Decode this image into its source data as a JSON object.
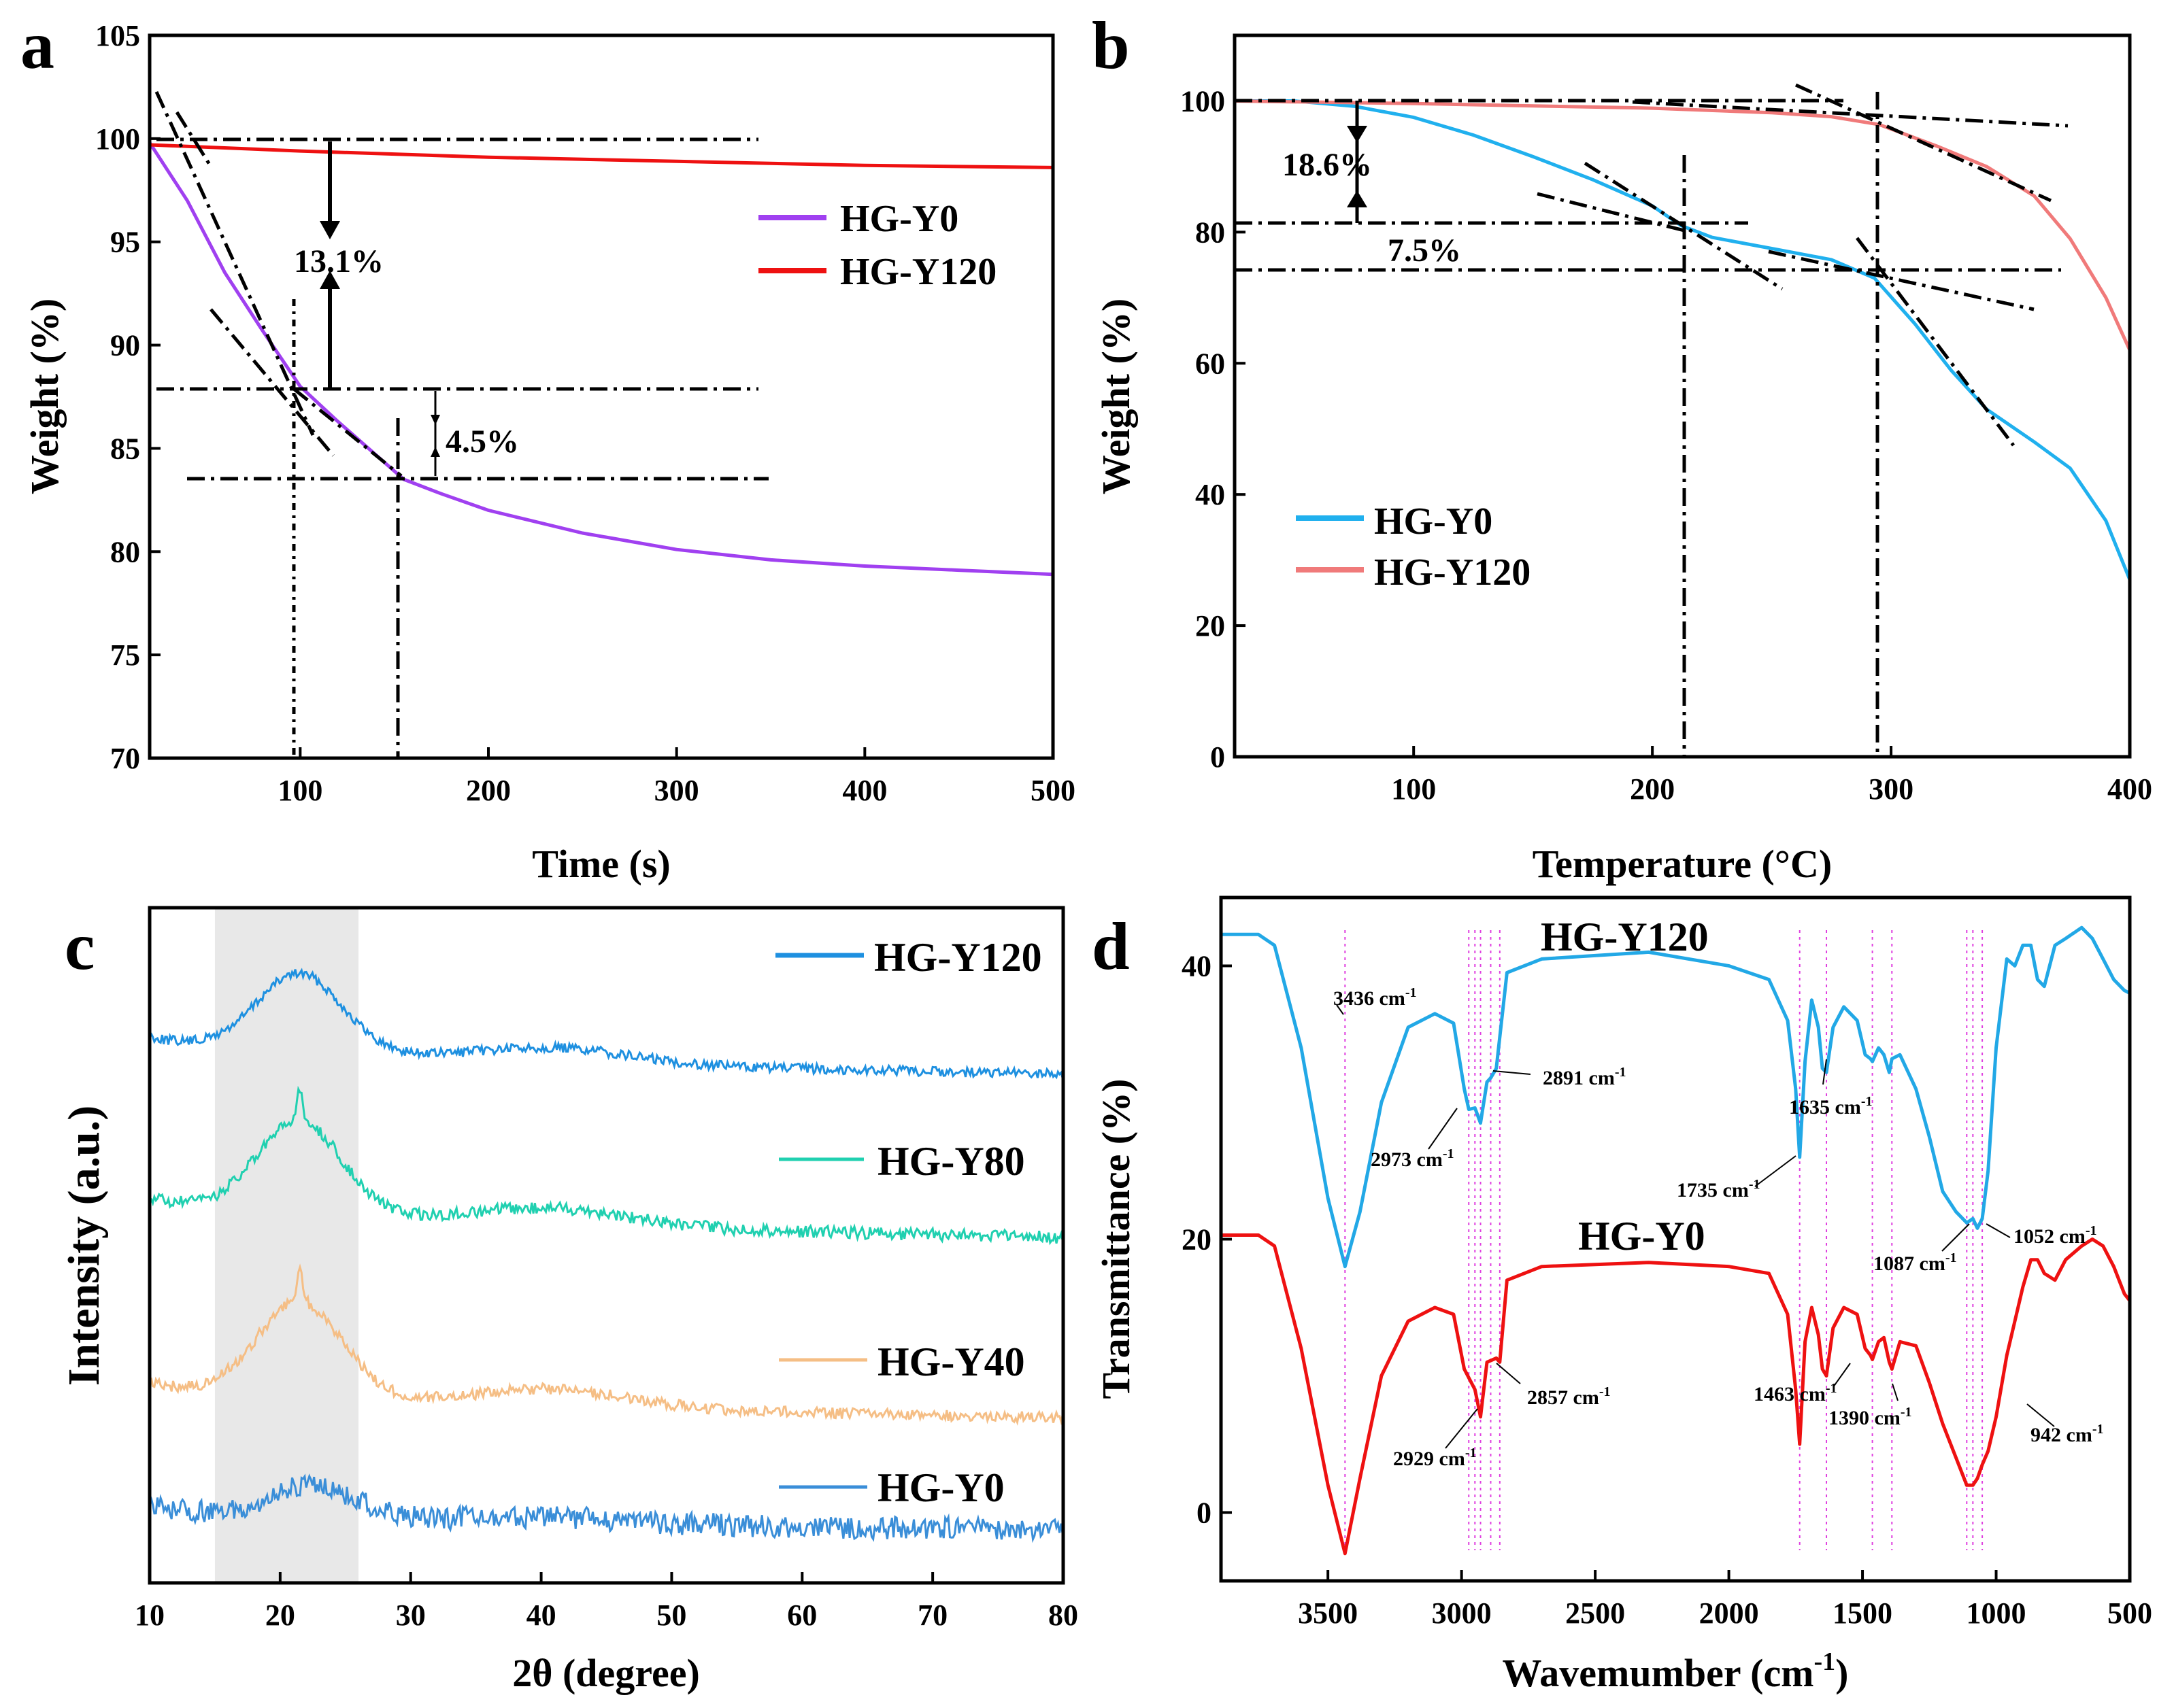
{
  "chart_data": [
    {
      "panel": "a",
      "type": "line",
      "xlabel": "Time (s)",
      "ylabel": "Weight (%)",
      "xlim": [
        20,
        500
      ],
      "ylim": [
        70,
        105
      ],
      "xticks": [
        100,
        200,
        300,
        400,
        500
      ],
      "yticks": [
        70,
        75,
        80,
        85,
        90,
        95,
        100,
        105
      ],
      "legend_position": "center-right",
      "series": [
        {
          "name": "HG-Y0",
          "color": "#a040f0",
          "x": [
            20,
            40,
            60,
            80,
            100,
            120,
            140,
            155,
            175,
            200,
            250,
            300,
            350,
            400,
            450,
            500
          ],
          "y": [
            99.8,
            97.0,
            93.5,
            90.7,
            88.0,
            86.3,
            84.7,
            83.5,
            82.8,
            82.0,
            80.9,
            80.1,
            79.6,
            79.3,
            79.1,
            78.9
          ]
        },
        {
          "name": "HG-Y120",
          "color": "#ee1111",
          "x": [
            20,
            100,
            200,
            300,
            400,
            500
          ],
          "y": [
            99.7,
            99.4,
            99.1,
            98.9,
            98.7,
            98.6
          ]
        }
      ],
      "annotations": [
        "13.1%",
        "4.5%"
      ]
    },
    {
      "panel": "b",
      "type": "line",
      "xlabel": "Temperature (°C)",
      "ylabel": "Weight (%)",
      "xlim": [
        25,
        400
      ],
      "ylim": [
        0,
        110
      ],
      "xticks": [
        100,
        200,
        300,
        400
      ],
      "yticks": [
        0,
        20,
        40,
        60,
        80,
        100
      ],
      "legend_position": "bottom-left",
      "series": [
        {
          "name": "HG-Y0",
          "color": "#20b0ee",
          "x": [
            25,
            50,
            75,
            100,
            125,
            150,
            175,
            200,
            212,
            225,
            250,
            275,
            293,
            310,
            325,
            340,
            360,
            375,
            390,
            400
          ],
          "y": [
            100,
            100,
            99.2,
            97.5,
            94.8,
            91.5,
            88.0,
            84.0,
            81.0,
            79.2,
            77.5,
            75.8,
            73.0,
            66.0,
            59.0,
            53.0,
            48.0,
            44.0,
            36.0,
            27.0
          ]
        },
        {
          "name": "HG-Y120",
          "color": "#f07a7a",
          "x": [
            25,
            100,
            200,
            250,
            275,
            295,
            320,
            340,
            360,
            375,
            390,
            400
          ],
          "y": [
            100,
            99.6,
            98.9,
            98.2,
            97.6,
            96.4,
            93.0,
            90.0,
            85.5,
            79.0,
            70.0,
            62.0
          ]
        }
      ],
      "annotations": [
        "18.6%",
        "7.5%"
      ]
    },
    {
      "panel": "c",
      "type": "line",
      "xlabel": "2θ (degree)",
      "ylabel": "Intensity (a.u.)",
      "xlim": [
        10,
        80
      ],
      "xticks": [
        10,
        20,
        30,
        40,
        50,
        60,
        70,
        80
      ],
      "highlight_range": [
        15,
        26
      ],
      "series": [
        {
          "name": "HG-Y120",
          "color": "#1e90e0",
          "peak_x": 21.5
        },
        {
          "name": "HG-Y80",
          "color": "#20d0b0",
          "peak_x": 21.5
        },
        {
          "name": "HG-Y40",
          "color": "#f5be85",
          "peak_x": 21.5
        },
        {
          "name": "HG-Y0",
          "color": "#3a8ed8",
          "peak_x": 22.5
        }
      ]
    },
    {
      "panel": "d",
      "type": "line",
      "xlabel": "Wavemumber (cm",
      "xlabel_sup": "-1",
      "xlabel_tail": ")",
      "ylabel": "Transmittance (%)",
      "xlim": [
        3900,
        500
      ],
      "ylim": [
        -5,
        45
      ],
      "xticks": [
        3500,
        3000,
        2500,
        2000,
        1500,
        1000,
        500
      ],
      "yticks": [
        0,
        20,
        40
      ],
      "series": [
        {
          "name": "HG-Y120",
          "color": "#22a8e6",
          "x": [
            3900,
            3760,
            3700,
            3600,
            3500,
            3436,
            3380,
            3300,
            3200,
            3100,
            3030,
            2990,
            2973,
            2950,
            2929,
            2905,
            2891,
            2870,
            2830,
            2700,
            2300,
            2000,
            1850,
            1780,
            1750,
            1735,
            1715,
            1690,
            1665,
            1650,
            1635,
            1610,
            1570,
            1520,
            1490,
            1470,
            1463,
            1440,
            1420,
            1400,
            1390,
            1360,
            1300,
            1250,
            1200,
            1150,
            1110,
            1087,
            1070,
            1052,
            1030,
            1000,
            960,
            930,
            900,
            870,
            845,
            820,
            780,
            740,
            680,
            640,
            600,
            560,
            520,
            500
          ],
          "y": [
            42.3,
            42.3,
            41.5,
            34.0,
            23.0,
            18.0,
            22.0,
            30.0,
            35.5,
            36.5,
            35.8,
            31.0,
            29.5,
            29.6,
            28.5,
            31.5,
            31.8,
            32.5,
            39.5,
            40.5,
            41.0,
            40.0,
            39.0,
            36.0,
            31.0,
            26.0,
            33.0,
            37.5,
            35.5,
            32.5,
            32.2,
            35.5,
            37.0,
            36.0,
            33.5,
            33.2,
            33.0,
            34.0,
            33.5,
            32.2,
            33.2,
            33.5,
            31.0,
            27.5,
            23.5,
            22.0,
            21.2,
            21.5,
            20.8,
            21.5,
            25.0,
            34.0,
            40.5,
            40.0,
            41.5,
            41.5,
            39.0,
            38.5,
            41.5,
            42.0,
            42.8,
            42.0,
            40.5,
            39.0,
            38.2,
            38.0
          ]
        },
        {
          "name": "HG-Y0",
          "color": "#ee1111",
          "x": [
            3900,
            3760,
            3700,
            3600,
            3500,
            3436,
            3380,
            3300,
            3200,
            3100,
            3030,
            2990,
            2950,
            2929,
            2905,
            2870,
            2857,
            2830,
            2700,
            2300,
            2000,
            1850,
            1780,
            1750,
            1735,
            1715,
            1690,
            1665,
            1650,
            1635,
            1610,
            1570,
            1520,
            1490,
            1470,
            1463,
            1440,
            1420,
            1400,
            1390,
            1360,
            1300,
            1250,
            1200,
            1150,
            1110,
            1087,
            1070,
            1052,
            1030,
            1000,
            960,
            942,
            900,
            870,
            845,
            820,
            780,
            740,
            680,
            640,
            600,
            560,
            520,
            500
          ],
          "y": [
            20.3,
            20.3,
            19.5,
            12.0,
            2.0,
            -3.0,
            2.5,
            10.0,
            14.0,
            15.0,
            14.5,
            10.5,
            9.0,
            7.0,
            11.0,
            11.3,
            11.0,
            17.0,
            18.0,
            18.3,
            18.0,
            17.5,
            14.5,
            9.0,
            5.0,
            12.5,
            15.0,
            13.0,
            10.5,
            10.0,
            13.5,
            15.0,
            14.5,
            12.0,
            11.5,
            11.2,
            12.5,
            12.8,
            11.0,
            10.5,
            12.5,
            12.2,
            9.5,
            6.5,
            4.0,
            2.0,
            2.0,
            2.5,
            3.5,
            4.5,
            7.0,
            11.5,
            13.0,
            16.5,
            18.5,
            18.5,
            17.5,
            17.0,
            18.5,
            19.5,
            20.0,
            19.5,
            18.0,
            16.0,
            15.5
          ]
        }
      ],
      "peak_labels": [
        {
          "text": "3436 cm",
          "sup": "-1"
        },
        {
          "text": "2973 cm",
          "sup": "-1"
        },
        {
          "text": "2891 cm",
          "sup": "-1"
        },
        {
          "text": "1635 cm",
          "sup": "-1"
        },
        {
          "text": "1735 cm",
          "sup": "-1"
        },
        {
          "text": "1087 cm",
          "sup": "-1"
        },
        {
          "text": "1052 cm",
          "sup": "-1"
        },
        {
          "text": "2929 cm",
          "sup": "-1"
        },
        {
          "text": "2857 cm",
          "sup": "-1"
        },
        {
          "text": "1463 cm",
          "sup": "-1"
        },
        {
          "text": "1390 cm",
          "sup": "-1"
        },
        {
          "text": "942 cm",
          "sup": "-1"
        }
      ],
      "marker_lines_x": [
        3436,
        2973,
        2950,
        2929,
        2891,
        2857,
        1735,
        1635,
        1463,
        1390,
        1110,
        1087,
        1052
      ],
      "marker_color": "#e040e0"
    }
  ]
}
